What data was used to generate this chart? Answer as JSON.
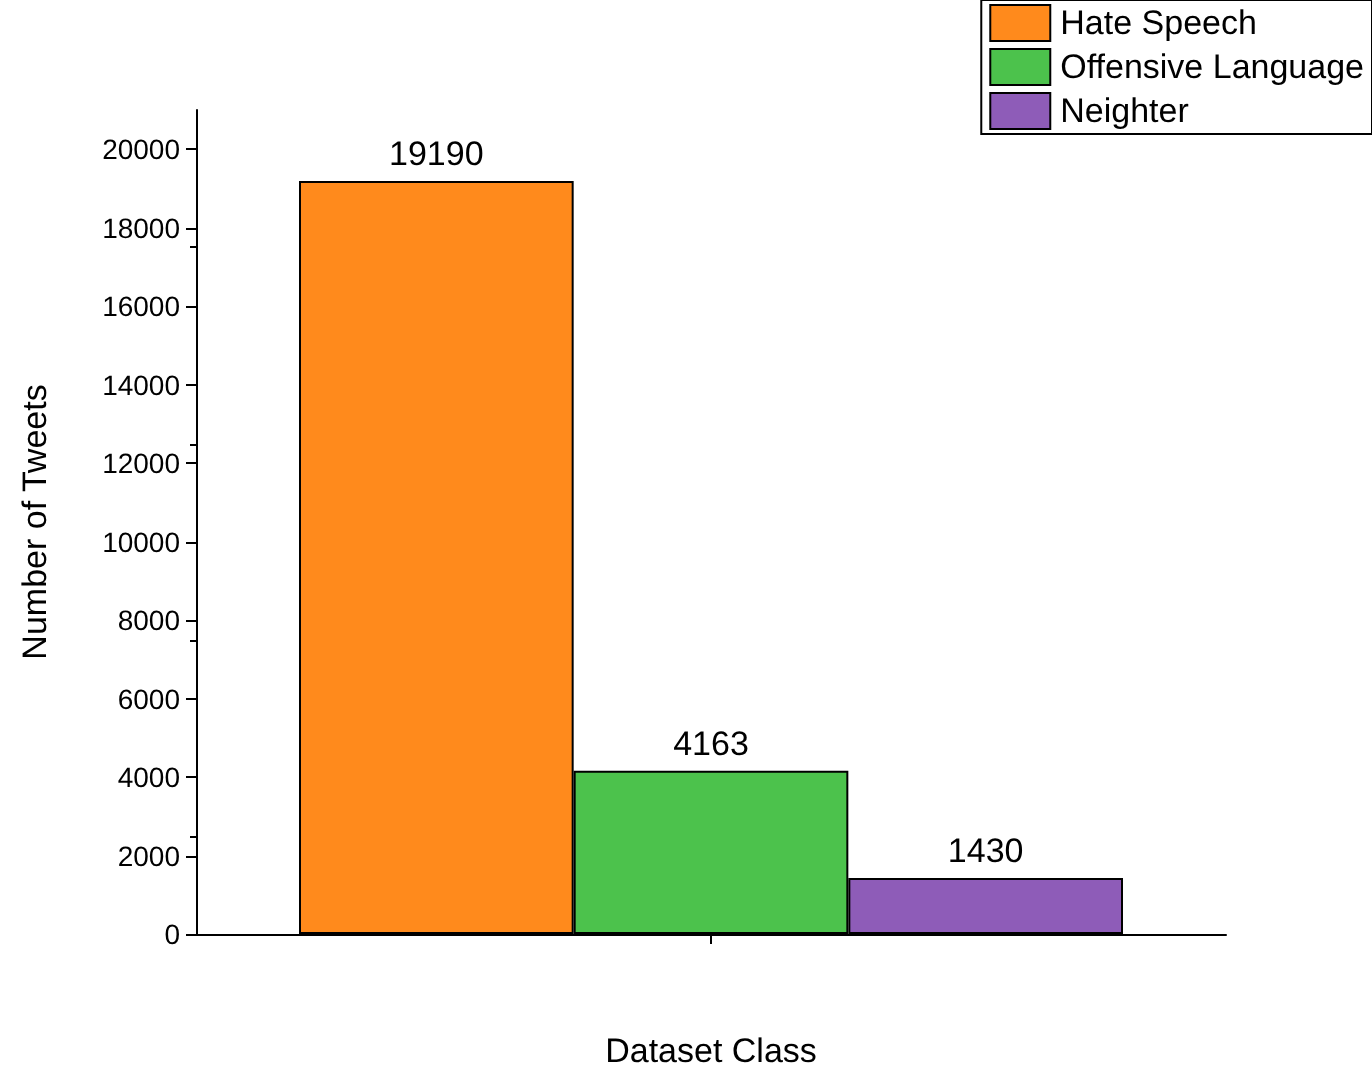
{
  "chart_data": {
    "type": "bar",
    "xlabel": "Dataset Class",
    "ylabel": "Number of Tweets",
    "categories": [
      null
    ],
    "series": [
      {
        "name": "Hate Speech",
        "color": "#ff8a1c",
        "values": [
          19190
        ]
      },
      {
        "name": "Offensive Language",
        "color": "#4cc24c",
        "values": [
          4163
        ]
      },
      {
        "name": "Neighter",
        "color": "#8e5cb8",
        "values": [
          1430
        ]
      }
    ],
    "ylim": [
      0,
      21000
    ],
    "yticks": [
      0,
      2000,
      4000,
      6000,
      8000,
      10000,
      12000,
      14000,
      16000,
      18000,
      20000
    ],
    "grid": false,
    "legend": "top right",
    "data_labels": true
  }
}
